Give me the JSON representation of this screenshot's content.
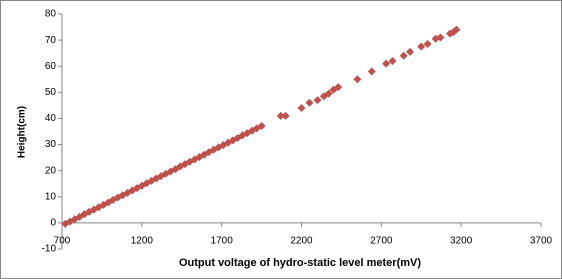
{
  "chart_data": {
    "type": "scatter",
    "x_label": "Output voltage of hydro-static level meter(mV)",
    "y_label": "Height(cm)",
    "x": [
      720,
      750,
      780,
      810,
      840,
      870,
      900,
      930,
      960,
      990,
      1020,
      1050,
      1080,
      1110,
      1140,
      1170,
      1200,
      1230,
      1260,
      1290,
      1320,
      1350,
      1380,
      1410,
      1440,
      1470,
      1500,
      1530,
      1560,
      1590,
      1620,
      1650,
      1680,
      1710,
      1740,
      1770,
      1800,
      1830,
      1860,
      1890,
      1920,
      1950,
      2070,
      2100,
      2200,
      2250,
      2300,
      2340,
      2370,
      2400,
      2430,
      2550,
      2640,
      2730,
      2770,
      2840,
      2880,
      2950,
      2990,
      3040,
      3070,
      3130,
      3150,
      3170
    ],
    "values": [
      -0.4,
      0.5,
      1.4,
      2.3,
      3.3,
      4.2,
      5.1,
      6.0,
      6.9,
      7.8,
      8.8,
      9.7,
      10.6,
      11.5,
      12.4,
      13.3,
      14.2,
      15.2,
      16.1,
      17.0,
      17.9,
      18.8,
      19.7,
      20.6,
      21.6,
      22.5,
      23.4,
      24.3,
      25.2,
      26.1,
      27.1,
      28.0,
      28.9,
      29.8,
      30.7,
      31.6,
      32.5,
      33.5,
      34.4,
      35.3,
      36.2,
      37.1,
      41,
      41,
      44,
      46,
      47,
      48.5,
      49.5,
      51,
      52,
      55,
      58,
      61,
      62,
      64,
      65.5,
      67.5,
      68.5,
      70.5,
      71,
      72.5,
      73,
      74
    ],
    "color": "#c0504d",
    "xlim": [
      700,
      3700
    ],
    "xticks": [
      700,
      1200,
      1700,
      2200,
      2700,
      3200,
      3700
    ],
    "ylim": [
      -10,
      80
    ],
    "yticks": [
      -10,
      0,
      10,
      20,
      30,
      40,
      50,
      60,
      70,
      80
    ],
    "grid": false
  }
}
